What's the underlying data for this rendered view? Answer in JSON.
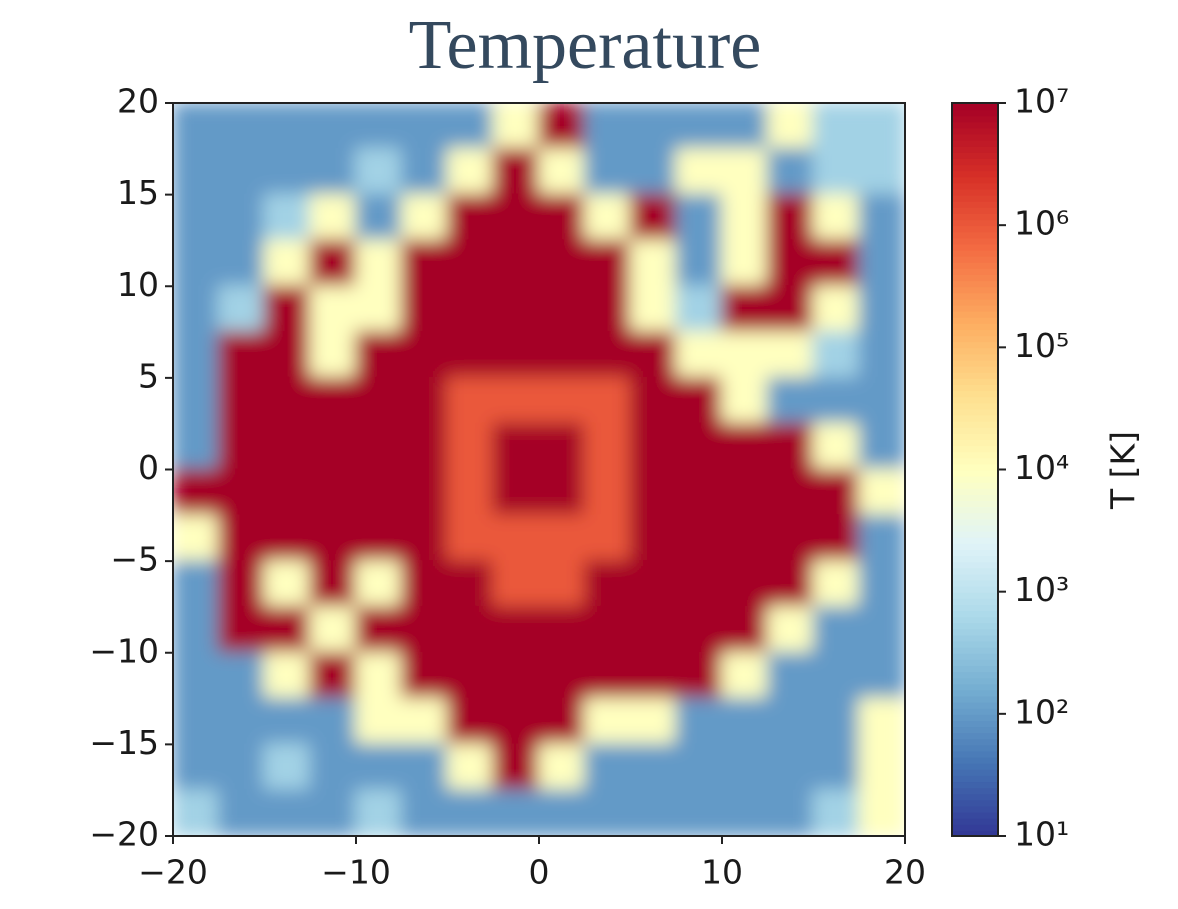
{
  "chart_data": {
    "type": "heatmap",
    "title": "Temperature",
    "colorbar_label": "T [K]",
    "x": [
      -18.75,
      -16.25,
      -13.75,
      -11.25,
      -8.75,
      -6.25,
      -3.75,
      -1.25,
      1.25,
      3.75,
      6.25,
      8.75,
      11.25,
      13.75,
      16.25,
      18.75
    ],
    "y": [
      18.75,
      16.25,
      13.75,
      11.25,
      8.75,
      6.25,
      3.75,
      1.25,
      -1.25,
      -3.75,
      -6.25,
      -8.75,
      -11.25,
      -13.75,
      -16.25,
      -18.75
    ],
    "z": [
      [
        100,
        100,
        100,
        100,
        100,
        100,
        100,
        10000,
        10000000,
        100,
        100,
        100,
        100,
        10000,
        500,
        500
      ],
      [
        100,
        100,
        100,
        100,
        500,
        100,
        10000,
        10000000,
        10000,
        100,
        100,
        10000,
        10000,
        100,
        500,
        500
      ],
      [
        100,
        100,
        500,
        10000,
        100,
        10000,
        10000000,
        10000000,
        10000000,
        10000,
        10000000,
        100,
        10000,
        10000000,
        10000,
        100
      ],
      [
        100,
        100,
        10000,
        10000000,
        10000,
        10000000,
        10000000,
        10000000,
        10000000,
        10000000,
        10000,
        100,
        10000,
        10000000,
        10000000,
        100
      ],
      [
        100,
        500,
        10000000,
        10000,
        10000,
        10000000,
        10000000,
        10000000,
        10000000,
        10000000,
        10000,
        500,
        10000000,
        10000000,
        10000,
        100
      ],
      [
        100,
        10000000,
        10000000,
        10000,
        10000000,
        10000000,
        10000000,
        10000000,
        10000000,
        10000000,
        10000000,
        10000,
        10000,
        10000,
        500,
        100
      ],
      [
        100,
        10000000,
        10000000,
        10000000,
        10000000,
        10000000,
        1000000,
        1000000,
        1000000,
        1000000,
        10000000,
        10000000,
        10000,
        100,
        100,
        100
      ],
      [
        100,
        10000000,
        10000000,
        10000000,
        10000000,
        10000000,
        1000000,
        10000000,
        10000000,
        1000000,
        10000000,
        10000000,
        10000000,
        10000000,
        10000,
        100
      ],
      [
        10000000,
        10000000,
        10000000,
        10000000,
        10000000,
        10000000,
        1000000,
        10000000,
        10000000,
        1000000,
        10000000,
        10000000,
        10000000,
        10000000,
        10000000,
        10000
      ],
      [
        10000,
        10000000,
        10000000,
        10000000,
        10000000,
        10000000,
        1000000,
        1000000,
        1000000,
        1000000,
        10000000,
        10000000,
        10000000,
        10000000,
        10000000,
        100
      ],
      [
        100,
        10000000,
        10000,
        10000000,
        10000,
        10000000,
        10000000,
        1000000,
        1000000,
        10000000,
        10000000,
        10000000,
        10000000,
        10000000,
        10000,
        100
      ],
      [
        100,
        10000000,
        10000000,
        10000,
        10000000,
        10000000,
        10000000,
        10000000,
        10000000,
        10000000,
        10000000,
        10000000,
        10000000,
        10000,
        100,
        100
      ],
      [
        100,
        100,
        10000,
        10000000,
        10000,
        10000000,
        10000000,
        10000000,
        10000000,
        10000000,
        10000000,
        10000000,
        10000,
        100,
        100,
        100
      ],
      [
        100,
        100,
        100,
        100,
        10000,
        10000,
        10000000,
        10000000,
        10000000,
        10000,
        10000,
        100,
        100,
        100,
        100,
        10000
      ],
      [
        100,
        100,
        500,
        100,
        100,
        100,
        10000,
        10000000,
        10000,
        100,
        100,
        100,
        100,
        100,
        100,
        10000
      ],
      [
        500,
        100,
        100,
        100,
        500,
        100,
        100,
        100,
        100,
        100,
        100,
        100,
        100,
        100,
        500,
        10000
      ]
    ],
    "xlim": [
      -20,
      20
    ],
    "ylim": [
      -20,
      20
    ],
    "xticks": [
      {
        "value": -20,
        "label": "−20"
      },
      {
        "value": -10,
        "label": "−10"
      },
      0,
      10,
      20
    ],
    "yticks": [
      {
        "value": -20,
        "label": "−20"
      },
      {
        "value": -15,
        "label": "−15"
      },
      {
        "value": -10,
        "label": "−10"
      },
      {
        "value": -5,
        "label": "−5"
      },
      0,
      5,
      10,
      15,
      20
    ],
    "zlim": [
      10,
      10000000
    ],
    "zscale": "log",
    "zticks": [
      {
        "value": 10,
        "label": "10¹"
      },
      {
        "value": 100,
        "label": "10²"
      },
      {
        "value": 1000,
        "label": "10³"
      },
      {
        "value": 10000,
        "label": "10⁴"
      },
      {
        "value": 100000,
        "label": "10⁵"
      },
      {
        "value": 1000000,
        "label": "10⁶"
      },
      {
        "value": 10000000,
        "label": "10⁷"
      }
    ],
    "colormap": [
      "#313695",
      "#4575b4",
      "#74add1",
      "#abd9e9",
      "#e0f3f8",
      "#ffffbf",
      "#fee090",
      "#fdae61",
      "#f46d43",
      "#d73027",
      "#a50026"
    ]
  }
}
